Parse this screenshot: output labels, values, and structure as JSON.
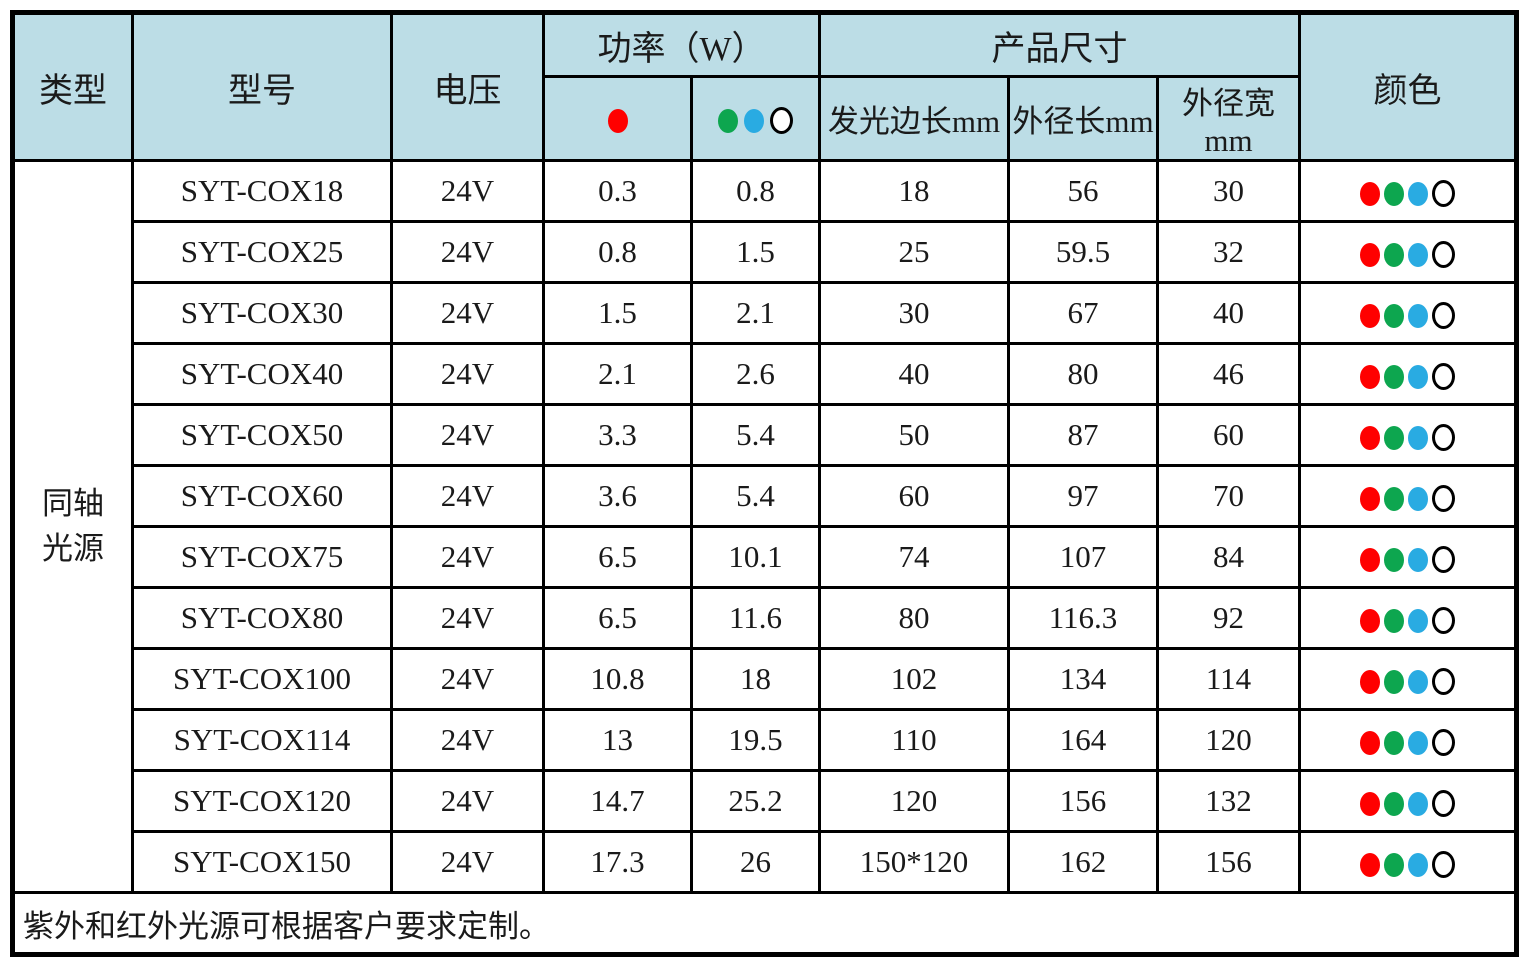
{
  "table": {
    "headers": {
      "type": "类型",
      "model": "型号",
      "voltage": "电压",
      "power": "功率（W）",
      "dimensions": "产品尺寸",
      "color": "颜色",
      "dim_sub": [
        "发光边长mm",
        "外径长mm",
        "外径宽mm"
      ]
    },
    "power_sub_icons": {
      "red_group": [
        "red"
      ],
      "other_group": [
        "green",
        "blue",
        "white"
      ]
    },
    "category": "同轴光源",
    "category_lines": [
      "同轴",
      "光源"
    ],
    "rows": [
      {
        "model": "SYT-COX18",
        "voltage": "24V",
        "power_red": "0.3",
        "power_gbw": "0.8",
        "lum_side": "18",
        "outer_len": "56",
        "outer_wid": "30",
        "colors": [
          "red",
          "green",
          "blue",
          "white"
        ]
      },
      {
        "model": "SYT-COX25",
        "voltage": "24V",
        "power_red": "0.8",
        "power_gbw": "1.5",
        "lum_side": "25",
        "outer_len": "59.5",
        "outer_wid": "32",
        "colors": [
          "red",
          "green",
          "blue",
          "white"
        ]
      },
      {
        "model": "SYT-COX30",
        "voltage": "24V",
        "power_red": "1.5",
        "power_gbw": "2.1",
        "lum_side": "30",
        "outer_len": "67",
        "outer_wid": "40",
        "colors": [
          "red",
          "green",
          "blue",
          "white"
        ]
      },
      {
        "model": "SYT-COX40",
        "voltage": "24V",
        "power_red": "2.1",
        "power_gbw": "2.6",
        "lum_side": "40",
        "outer_len": "80",
        "outer_wid": "46",
        "colors": [
          "red",
          "green",
          "blue",
          "white"
        ]
      },
      {
        "model": "SYT-COX50",
        "voltage": "24V",
        "power_red": "3.3",
        "power_gbw": "5.4",
        "lum_side": "50",
        "outer_len": "87",
        "outer_wid": "60",
        "colors": [
          "red",
          "green",
          "blue",
          "white"
        ]
      },
      {
        "model": "SYT-COX60",
        "voltage": "24V",
        "power_red": "3.6",
        "power_gbw": "5.4",
        "lum_side": "60",
        "outer_len": "97",
        "outer_wid": "70",
        "colors": [
          "red",
          "green",
          "blue",
          "white"
        ]
      },
      {
        "model": "SYT-COX75",
        "voltage": "24V",
        "power_red": "6.5",
        "power_gbw": "10.1",
        "lum_side": "74",
        "outer_len": "107",
        "outer_wid": "84",
        "colors": [
          "red",
          "green",
          "blue",
          "white"
        ]
      },
      {
        "model": "SYT-COX80",
        "voltage": "24V",
        "power_red": "6.5",
        "power_gbw": "11.6",
        "lum_side": "80",
        "outer_len": "116.3",
        "outer_wid": "92",
        "colors": [
          "red",
          "green",
          "blue",
          "white"
        ]
      },
      {
        "model": "SYT-COX100",
        "voltage": "24V",
        "power_red": "10.8",
        "power_gbw": "18",
        "lum_side": "102",
        "outer_len": "134",
        "outer_wid": "114",
        "colors": [
          "red",
          "green",
          "blue",
          "white"
        ]
      },
      {
        "model": "SYT-COX114",
        "voltage": "24V",
        "power_red": "13",
        "power_gbw": "19.5",
        "lum_side": "110",
        "outer_len": "164",
        "outer_wid": "120",
        "colors": [
          "red",
          "green",
          "blue",
          "white"
        ]
      },
      {
        "model": "SYT-COX120",
        "voltage": "24V",
        "power_red": "14.7",
        "power_gbw": "25.2",
        "lum_side": "120",
        "outer_len": "156",
        "outer_wid": "132",
        "colors": [
          "red",
          "green",
          "blue",
          "white"
        ]
      },
      {
        "model": "SYT-COX150",
        "voltage": "24V",
        "power_red": "17.3",
        "power_gbw": "26",
        "lum_side": "150*120",
        "outer_len": "162",
        "outer_wid": "156",
        "colors": [
          "red",
          "green",
          "blue",
          "white"
        ]
      }
    ],
    "footnote": "紫外和红外光源可根据客户要求定制。"
  },
  "colors": {
    "header_bg": "#bcdde6",
    "border": "#000000",
    "red": "#ff0000",
    "green": "#0da64f",
    "blue": "#29abe2",
    "white": "#ffffff"
  }
}
